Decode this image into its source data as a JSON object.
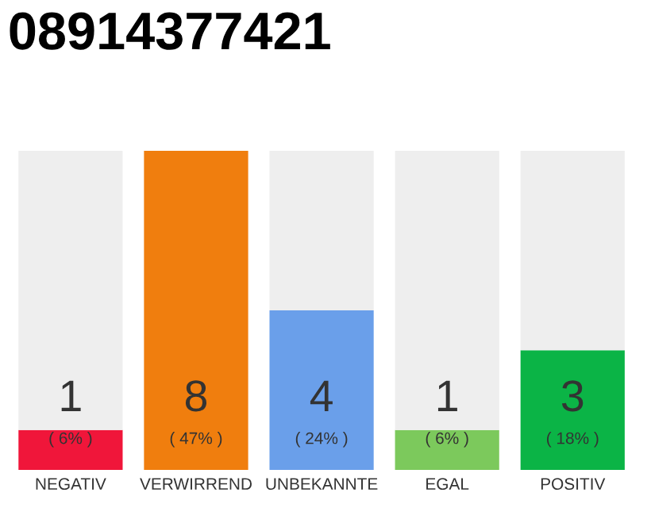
{
  "chart_data": {
    "type": "bar",
    "title": "08914377421",
    "categories": [
      "NEGATIV",
      "VERWIRREND",
      "UNBEKANNTE",
      "EGAL",
      "POSITIV"
    ],
    "stacked": true,
    "series": [
      {
        "colors": [
          "#f0163a",
          "#f07e0e",
          "#6a9fea",
          "#7cc95c",
          "#0bb446"
        ],
        "values": [
          1,
          8,
          4,
          1,
          3
        ],
        "value_labels": [
          "1",
          "8",
          "4",
          "1",
          "3"
        ]
      },
      {
        "color": "#eeeeee",
        "values": [
          7,
          0,
          4,
          7,
          5
        ]
      }
    ],
    "ylim": [
      0,
      8
    ],
    "tick_labels": "x",
    "legend": false,
    "annotations": [
      "( 6% )",
      "( 47% )",
      "( 24% )",
      "( 6% )",
      "( 18% )"
    ]
  }
}
